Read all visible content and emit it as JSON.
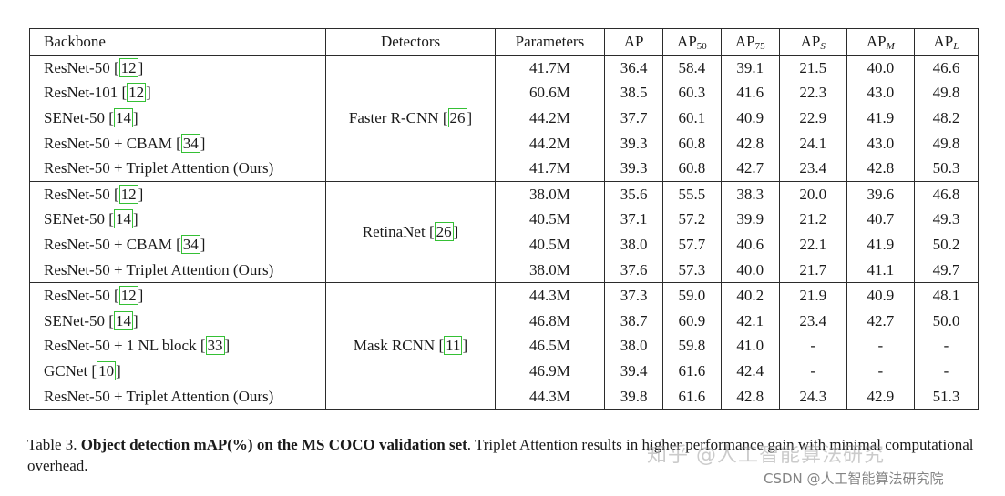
{
  "table": {
    "headers": {
      "backbone": "Backbone",
      "detectors": "Detectors",
      "parameters": "Parameters",
      "ap": "AP",
      "ap50_base": "AP",
      "ap50_sub": "50",
      "ap75_base": "AP",
      "ap75_sub": "75",
      "aps_base": "AP",
      "aps_sub": "S",
      "apm_base": "AP",
      "apm_sub": "M",
      "apl_base": "AP",
      "apl_sub": "L"
    },
    "groups": [
      {
        "detector": "Faster R-CNN",
        "detector_cite": "26",
        "rows": [
          {
            "backbone": "ResNet-50 ",
            "cite": "12",
            "params": "41.7M",
            "ap": "36.4",
            "ap50": "58.4",
            "ap75": "39.1",
            "aps": "21.5",
            "apm": "40.0",
            "apl": "46.6"
          },
          {
            "backbone": "ResNet-101 ",
            "cite": "12",
            "params": "60.6M",
            "ap": "38.5",
            "ap50": "60.3",
            "ap75": "41.6",
            "aps": "22.3",
            "apm": "43.0",
            "apl": "49.8"
          },
          {
            "backbone": "SENet-50 ",
            "cite": "14",
            "params": "44.2M",
            "ap": "37.7",
            "ap50": "60.1",
            "ap75": "40.9",
            "aps": "22.9",
            "apm": "41.9",
            "apl": "48.2"
          },
          {
            "backbone": "ResNet-50 + CBAM ",
            "cite": "34",
            "params": "44.2M",
            "ap": "39.3",
            "ap50": "60.8",
            "ap75": "42.8",
            "aps": "24.1",
            "apm": "43.0",
            "apl": "49.8"
          },
          {
            "backbone": "ResNet-50 + Triplet Attention (Ours)",
            "cite": "",
            "params": "41.7M",
            "ap": "39.3",
            "ap50": "60.8",
            "ap75": "42.7",
            "aps": "23.4",
            "apm": "42.8",
            "apl": "50.3"
          }
        ]
      },
      {
        "detector": "RetinaNet",
        "detector_cite": "26",
        "rows": [
          {
            "backbone": "ResNet-50 ",
            "cite": "12",
            "params": "38.0M",
            "ap": "35.6",
            "ap50": "55.5",
            "ap75": "38.3",
            "aps": "20.0",
            "apm": "39.6",
            "apl": "46.8"
          },
          {
            "backbone": "SENet-50 ",
            "cite": "14",
            "params": "40.5M",
            "ap": "37.1",
            "ap50": "57.2",
            "ap75": "39.9",
            "aps": "21.2",
            "apm": "40.7",
            "apl": "49.3"
          },
          {
            "backbone": "ResNet-50 + CBAM ",
            "cite": "34",
            "params": "40.5M",
            "ap": "38.0",
            "ap50": "57.7",
            "ap75": "40.6",
            "aps": "22.1",
            "apm": "41.9",
            "apl": "50.2"
          },
          {
            "backbone": "ResNet-50 + Triplet Attention (Ours)",
            "cite": "",
            "params": "38.0M",
            "ap": "37.6",
            "ap50": "57.3",
            "ap75": "40.0",
            "aps": "21.7",
            "apm": "41.1",
            "apl": "49.7"
          }
        ]
      },
      {
        "detector": "Mask RCNN",
        "detector_cite": "11",
        "rows": [
          {
            "backbone": "ResNet-50 ",
            "cite": "12",
            "params": "44.3M",
            "ap": "37.3",
            "ap50": "59.0",
            "ap75": "40.2",
            "aps": "21.9",
            "apm": "40.9",
            "apl": "48.1"
          },
          {
            "backbone": "SENet-50 ",
            "cite": "14",
            "params": "46.8M",
            "ap": "38.7",
            "ap50": "60.9",
            "ap75": "42.1",
            "aps": "23.4",
            "apm": "42.7",
            "apl": "50.0"
          },
          {
            "backbone": "ResNet-50 + 1 NL block ",
            "cite": "33",
            "params": "46.5M",
            "ap": "38.0",
            "ap50": "59.8",
            "ap75": "41.0",
            "aps": "-",
            "apm": "-",
            "apl": "-"
          },
          {
            "backbone": "GCNet ",
            "cite": "10",
            "params": "46.9M",
            "ap": "39.4",
            "ap50": "61.6",
            "ap75": "42.4",
            "aps": "-",
            "apm": "-",
            "apl": "-"
          },
          {
            "backbone": "ResNet-50 + Triplet Attention (Ours)",
            "cite": "",
            "params": "44.3M",
            "ap": "39.8",
            "ap50": "61.6",
            "ap75": "42.8",
            "aps": "24.3",
            "apm": "42.9",
            "apl": "51.3"
          }
        ]
      }
    ]
  },
  "caption": {
    "label": "Table 3. ",
    "bold": "Object detection mAP(%) on the MS COCO validation set",
    "rest": ". Triplet Attention results in higher performance gain with minimal computational overhead."
  },
  "watermarks": {
    "zhihu": "知乎 @人工智能算法研究",
    "csdn": "CSDN @人工智能算法研究院"
  }
}
